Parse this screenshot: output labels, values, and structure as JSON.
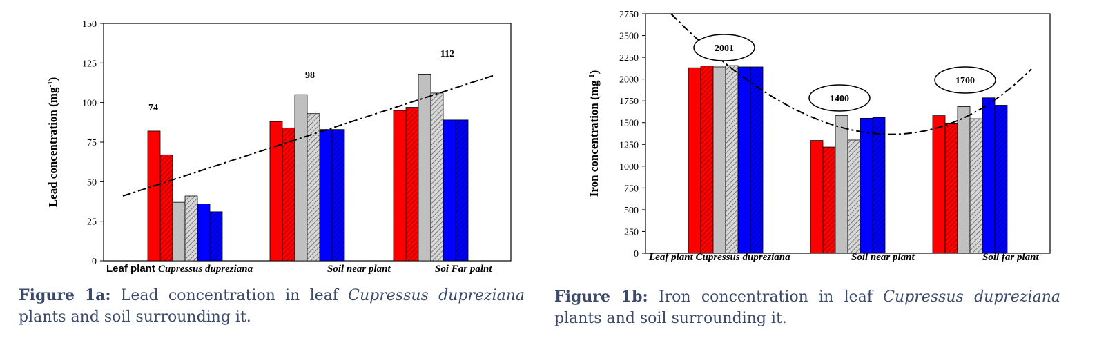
{
  "chart_data": [
    {
      "id": "fig1a",
      "type": "bar",
      "ylabel": "Lead concentration (mg",
      "ylabel_sup": "-1",
      "ylabel_close": ")",
      "ylim": [
        0,
        150
      ],
      "yticks": [
        "0",
        "25",
        "50",
        "75",
        "100",
        "125",
        "150"
      ],
      "groups": [
        {
          "name_parts": [
            {
              "text": "Leaf plant ",
              "style": "bold-sans"
            },
            {
              "text": "Cupressus dupreziana",
              "style": "bold-italic"
            }
          ],
          "values": [
            82,
            67,
            37,
            41,
            36,
            31
          ],
          "annotation": "74"
        },
        {
          "name_parts": [
            {
              "text": "Soil near plant",
              "style": "bold-italic"
            }
          ],
          "values": [
            88,
            84,
            105,
            93,
            83,
            83
          ],
          "annotation": "98"
        },
        {
          "name_parts": [
            {
              "text": "Soi Far palnt",
              "style": "bold-italic"
            }
          ],
          "values": [
            95,
            97,
            118,
            106,
            89,
            89
          ],
          "annotation": "112"
        }
      ],
      "trend_line": {
        "style": "dash-dot",
        "from": 41,
        "to": 117
      },
      "colors": [
        "#ff0000",
        "#ff0000",
        "#c0c0c0",
        "#c0c0c0",
        "#0000ff",
        "#0000ff"
      ],
      "hatched": [
        false,
        true,
        false,
        true,
        false,
        true
      ],
      "grid": false
    },
    {
      "id": "fig1b",
      "type": "bar",
      "ylabel": "Iron concentration (mg",
      "ylabel_sup": "-1",
      "ylabel_close": ")",
      "ylim": [
        0,
        2750
      ],
      "yticks": [
        "0",
        "250",
        "500",
        "750",
        "1000",
        "1250",
        "1500",
        "1750",
        "2000",
        "2250",
        "2500",
        "2750"
      ],
      "groups": [
        {
          "name_parts": [
            {
              "text": "Leaf plant Cupressus dupreziana",
              "style": "bold-italic"
            }
          ],
          "values": [
            2130,
            2150,
            2140,
            2155,
            2140,
            2140
          ],
          "annotation": "2001"
        },
        {
          "name_parts": [
            {
              "text": "Soil near plant",
              "style": "bold-italic"
            }
          ],
          "values": [
            1295,
            1220,
            1580,
            1300,
            1550,
            1560
          ],
          "annotation": "1400"
        },
        {
          "name_parts": [
            {
              "text": "Soil far plant",
              "style": "bold-italic"
            }
          ],
          "values": [
            1580,
            1495,
            1685,
            1545,
            1785,
            1700
          ],
          "annotation": "1700"
        }
      ],
      "trend_line": {
        "style": "dash-dot",
        "shape": "curve",
        "min": 1390
      },
      "colors": [
        "#ff0000",
        "#ff0000",
        "#c0c0c0",
        "#c0c0c0",
        "#0000ff",
        "#0000ff"
      ],
      "hatched": [
        false,
        true,
        false,
        true,
        false,
        true
      ],
      "grid": false
    }
  ],
  "captions": [
    {
      "label": "Figure 1a:",
      "text_before": " Lead concentration in leaf ",
      "species": "Cupressus dupreziana",
      "text_after": " plants and soil surrounding it."
    },
    {
      "label": "Figure 1b:",
      "text_before": " Iron concentration in leaf ",
      "species": "Cupressus dupreziana",
      "text_after": " plants and soil surrounding it."
    }
  ]
}
